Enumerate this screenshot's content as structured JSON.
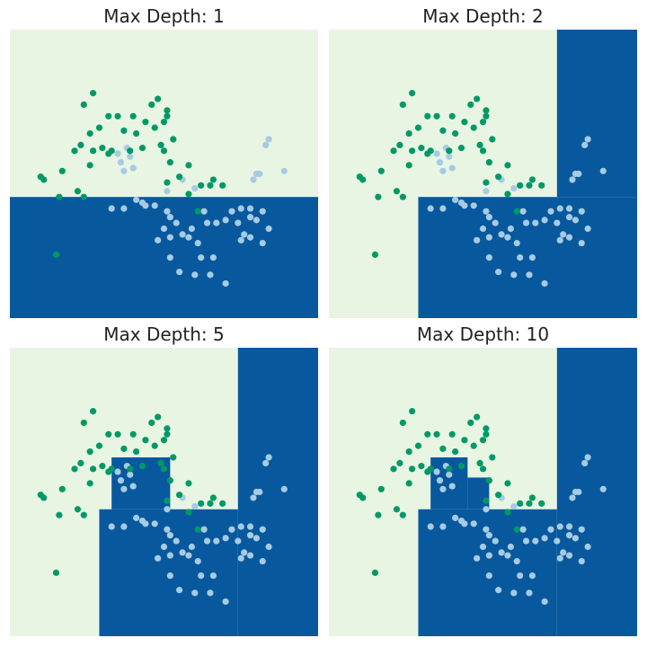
{
  "colors": {
    "light_region": "#e8f5e3",
    "dark_region": "#08589e",
    "class0_point": "#009966",
    "class1_point": "#a6cbe3"
  },
  "chart_data": [
    {
      "type": "scatter",
      "title": "Max Depth: 1",
      "xlim": [
        0,
        1
      ],
      "ylim": [
        0,
        1
      ],
      "grid": false,
      "regions": [
        {
          "class": 1,
          "x": [
            0.0,
            1.0
          ],
          "y": [
            0.0,
            0.42
          ]
        }
      ]
    },
    {
      "type": "scatter",
      "title": "Max Depth: 2",
      "xlim": [
        0,
        1
      ],
      "ylim": [
        0,
        1
      ],
      "grid": false,
      "regions": [
        {
          "class": 1,
          "x": [
            0.29,
            1.0
          ],
          "y": [
            0.0,
            0.42
          ]
        },
        {
          "class": 1,
          "x": [
            0.74,
            1.0
          ],
          "y": [
            0.42,
            1.0
          ]
        }
      ]
    },
    {
      "type": "scatter",
      "title": "Max Depth: 5",
      "xlim": [
        0,
        1
      ],
      "ylim": [
        0,
        1
      ],
      "grid": false,
      "regions": [
        {
          "class": 1,
          "x": [
            0.29,
            0.74
          ],
          "y": [
            0.0,
            0.44
          ]
        },
        {
          "class": 1,
          "x": [
            0.74,
            1.0
          ],
          "y": [
            0.0,
            1.0
          ]
        },
        {
          "class": 1,
          "x": [
            0.33,
            0.52
          ],
          "y": [
            0.44,
            0.62
          ]
        }
      ]
    },
    {
      "type": "scatter",
      "title": "Max Depth: 10",
      "xlim": [
        0,
        1
      ],
      "ylim": [
        0,
        1
      ],
      "grid": false,
      "regions": [
        {
          "class": 1,
          "x": [
            0.29,
            0.74
          ],
          "y": [
            0.0,
            0.44
          ]
        },
        {
          "class": 1,
          "x": [
            0.74,
            1.0
          ],
          "y": [
            0.0,
            1.0
          ]
        },
        {
          "class": 1,
          "x": [
            0.33,
            0.45
          ],
          "y": [
            0.44,
            0.62
          ]
        },
        {
          "class": 1,
          "x": [
            0.45,
            0.52
          ],
          "y": [
            0.44,
            0.55
          ]
        }
      ]
    }
  ],
  "points": {
    "class0": [
      [
        0.27,
        0.78
      ],
      [
        0.24,
        0.74
      ],
      [
        0.32,
        0.7
      ],
      [
        0.35,
        0.7
      ],
      [
        0.4,
        0.7
      ],
      [
        0.44,
        0.68
      ],
      [
        0.47,
        0.66
      ],
      [
        0.51,
        0.7
      ],
      [
        0.5,
        0.68
      ],
      [
        0.46,
        0.74
      ],
      [
        0.48,
        0.76
      ],
      [
        0.51,
        0.72
      ],
      [
        0.41,
        0.64
      ],
      [
        0.37,
        0.65
      ],
      [
        0.29,
        0.66
      ],
      [
        0.26,
        0.64
      ],
      [
        0.21,
        0.58
      ],
      [
        0.23,
        0.6
      ],
      [
        0.27,
        0.58
      ],
      [
        0.3,
        0.59
      ],
      [
        0.32,
        0.57
      ],
      [
        0.33,
        0.58
      ],
      [
        0.26,
        0.53
      ],
      [
        0.17,
        0.51
      ],
      [
        0.1,
        0.49
      ],
      [
        0.11,
        0.48
      ],
      [
        0.16,
        0.42
      ],
      [
        0.22,
        0.44
      ],
      [
        0.24,
        0.42
      ],
      [
        0.39,
        0.58
      ],
      [
        0.43,
        0.59
      ],
      [
        0.5,
        0.58
      ],
      [
        0.49,
        0.6
      ],
      [
        0.53,
        0.62
      ],
      [
        0.52,
        0.54
      ],
      [
        0.58,
        0.53
      ],
      [
        0.65,
        0.46
      ],
      [
        0.62,
        0.46
      ],
      [
        0.69,
        0.46
      ],
      [
        0.66,
        0.48
      ],
      [
        0.55,
        0.49
      ],
      [
        0.58,
        0.43
      ],
      [
        0.61,
        0.37
      ],
      [
        0.51,
        0.47
      ],
      [
        0.15,
        0.22
      ]
    ],
    "class1": [
      [
        0.38,
        0.59
      ],
      [
        0.35,
        0.57
      ],
      [
        0.39,
        0.56
      ],
      [
        0.36,
        0.54
      ],
      [
        0.37,
        0.51
      ],
      [
        0.4,
        0.52
      ],
      [
        0.43,
        0.4
      ],
      [
        0.47,
        0.39
      ],
      [
        0.44,
        0.39
      ],
      [
        0.41,
        0.41
      ],
      [
        0.37,
        0.38
      ],
      [
        0.33,
        0.38
      ],
      [
        0.51,
        0.37
      ],
      [
        0.52,
        0.35
      ],
      [
        0.54,
        0.33
      ],
      [
        0.5,
        0.31
      ],
      [
        0.52,
        0.28
      ],
      [
        0.48,
        0.27
      ],
      [
        0.56,
        0.29
      ],
      [
        0.59,
        0.31
      ],
      [
        0.58,
        0.28
      ],
      [
        0.61,
        0.26
      ],
      [
        0.64,
        0.33
      ],
      [
        0.67,
        0.33
      ],
      [
        0.7,
        0.34
      ],
      [
        0.72,
        0.37
      ],
      [
        0.75,
        0.38
      ],
      [
        0.78,
        0.38
      ],
      [
        0.82,
        0.37
      ],
      [
        0.78,
        0.35
      ],
      [
        0.74,
        0.33
      ],
      [
        0.76,
        0.29
      ],
      [
        0.78,
        0.28
      ],
      [
        0.82,
        0.26
      ],
      [
        0.84,
        0.31
      ],
      [
        0.8,
        0.34
      ],
      [
        0.75,
        0.27
      ],
      [
        0.66,
        0.21
      ],
      [
        0.62,
        0.21
      ],
      [
        0.55,
        0.16
      ],
      [
        0.6,
        0.15
      ],
      [
        0.65,
        0.15
      ],
      [
        0.7,
        0.12
      ],
      [
        0.52,
        0.21
      ],
      [
        0.51,
        0.44
      ],
      [
        0.56,
        0.48
      ],
      [
        0.6,
        0.45
      ],
      [
        0.63,
        0.37
      ],
      [
        0.79,
        0.48
      ],
      [
        0.8,
        0.5
      ],
      [
        0.81,
        0.5
      ],
      [
        0.89,
        0.51
      ],
      [
        0.83,
        0.6
      ],
      [
        0.84,
        0.62
      ]
    ]
  }
}
